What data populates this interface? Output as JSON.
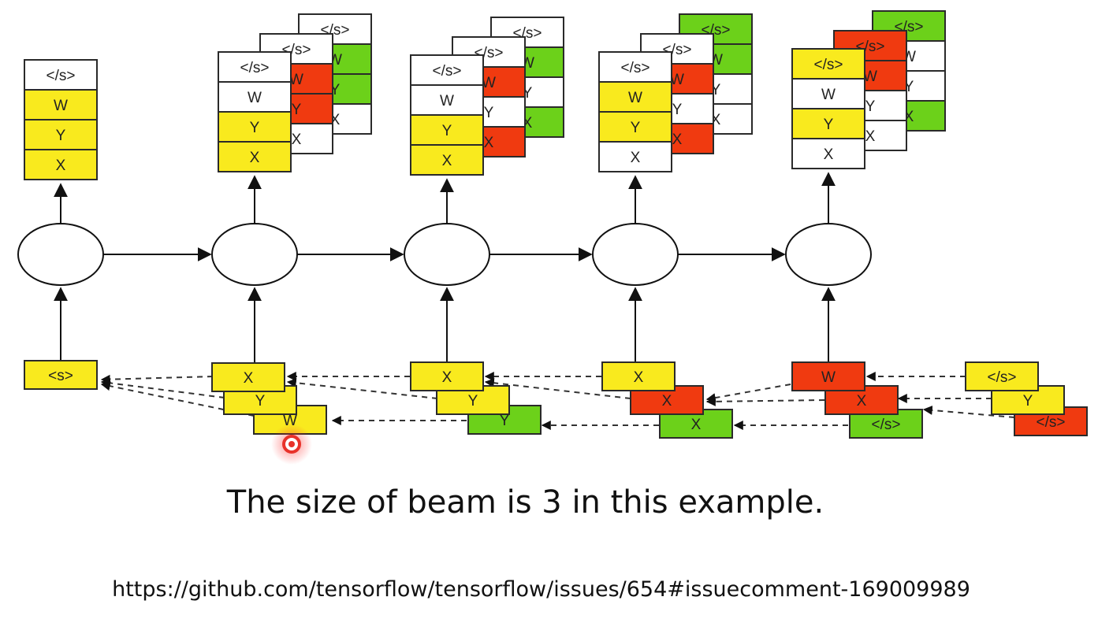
{
  "colors": {
    "yellow": "#f9ea1e",
    "white": "#ffffff",
    "red": "#f03a10",
    "green": "#6cd11a"
  },
  "annotation_icon": "recording-dot-icon",
  "caption": "The size of beam is 3 in this example.",
  "url": "https://github.com/tensorflow/tensorflow/issues/654#issuecomment-169009989",
  "steps": [
    {
      "outputs": [
        {
          "cells": [
            {
              "label": "</s>",
              "color": "white"
            },
            {
              "label": "W",
              "color": "yellow"
            },
            {
              "label": "Y",
              "color": "yellow"
            },
            {
              "label": "X",
              "color": "yellow"
            }
          ]
        }
      ],
      "inputs": [
        {
          "label": "<s>",
          "color": "yellow"
        }
      ]
    },
    {
      "outputs": [
        {
          "cells": [
            {
              "label": "</s>",
              "color": "white"
            },
            {
              "label": "W",
              "color": "white"
            },
            {
              "label": "Y",
              "color": "yellow"
            },
            {
              "label": "X",
              "color": "yellow"
            }
          ]
        },
        {
          "cells": [
            {
              "label": "</s>",
              "color": "white"
            },
            {
              "label": "W",
              "color": "red"
            },
            {
              "label": "Y",
              "color": "red"
            },
            {
              "label": "X",
              "color": "white"
            }
          ]
        },
        {
          "cells": [
            {
              "label": "</s>",
              "color": "white"
            },
            {
              "label": "W",
              "color": "green"
            },
            {
              "label": "Y",
              "color": "green"
            },
            {
              "label": "X",
              "color": "white"
            }
          ]
        }
      ],
      "inputs": [
        {
          "label": "X",
          "color": "yellow"
        },
        {
          "label": "Y",
          "color": "yellow"
        },
        {
          "label": "W",
          "color": "yellow"
        }
      ]
    },
    {
      "outputs": [
        {
          "cells": [
            {
              "label": "</s>",
              "color": "white"
            },
            {
              "label": "W",
              "color": "white"
            },
            {
              "label": "Y",
              "color": "yellow"
            },
            {
              "label": "X",
              "color": "yellow"
            }
          ]
        },
        {
          "cells": [
            {
              "label": "</s>",
              "color": "white"
            },
            {
              "label": "W",
              "color": "red"
            },
            {
              "label": "Y",
              "color": "white"
            },
            {
              "label": "X",
              "color": "red"
            }
          ]
        },
        {
          "cells": [
            {
              "label": "</s>",
              "color": "white"
            },
            {
              "label": "W",
              "color": "green"
            },
            {
              "label": "Y",
              "color": "white"
            },
            {
              "label": "X",
              "color": "green"
            }
          ]
        }
      ],
      "inputs": [
        {
          "label": "X",
          "color": "yellow"
        },
        {
          "label": "Y",
          "color": "yellow"
        },
        {
          "label": "Y",
          "color": "green"
        }
      ]
    },
    {
      "outputs": [
        {
          "cells": [
            {
              "label": "</s>",
              "color": "white"
            },
            {
              "label": "W",
              "color": "yellow"
            },
            {
              "label": "Y",
              "color": "yellow"
            },
            {
              "label": "X",
              "color": "white"
            }
          ]
        },
        {
          "cells": [
            {
              "label": "</s>",
              "color": "white"
            },
            {
              "label": "W",
              "color": "red"
            },
            {
              "label": "Y",
              "color": "white"
            },
            {
              "label": "X",
              "color": "red"
            }
          ]
        },
        {
          "cells": [
            {
              "label": "</s>",
              "color": "green"
            },
            {
              "label": "W",
              "color": "green"
            },
            {
              "label": "Y",
              "color": "white"
            },
            {
              "label": "X",
              "color": "white"
            }
          ]
        }
      ],
      "inputs": [
        {
          "label": "X",
          "color": "yellow"
        },
        {
          "label": "X",
          "color": "red"
        },
        {
          "label": "X",
          "color": "green"
        }
      ]
    },
    {
      "outputs": [
        {
          "cells": [
            {
              "label": "</s>",
              "color": "yellow"
            },
            {
              "label": "W",
              "color": "white"
            },
            {
              "label": "Y",
              "color": "yellow"
            },
            {
              "label": "X",
              "color": "white"
            }
          ]
        },
        {
          "cells": [
            {
              "label": "</s>",
              "color": "red"
            },
            {
              "label": "W",
              "color": "red"
            },
            {
              "label": "Y",
              "color": "white"
            },
            {
              "label": "X",
              "color": "white"
            }
          ]
        },
        {
          "cells": [
            {
              "label": "</s>",
              "color": "green"
            },
            {
              "label": "W",
              "color": "white"
            },
            {
              "label": "Y",
              "color": "white"
            },
            {
              "label": "X",
              "color": "green"
            }
          ]
        }
      ],
      "inputs": [
        {
          "label": "W",
          "color": "red"
        },
        {
          "label": "X",
          "color": "red"
        },
        {
          "label": "</s>",
          "color": "green"
        }
      ]
    }
  ],
  "final_beam": [
    {
      "label": "</s>",
      "color": "yellow"
    },
    {
      "label": "Y",
      "color": "yellow"
    },
    {
      "label": "</s>",
      "color": "red"
    }
  ]
}
